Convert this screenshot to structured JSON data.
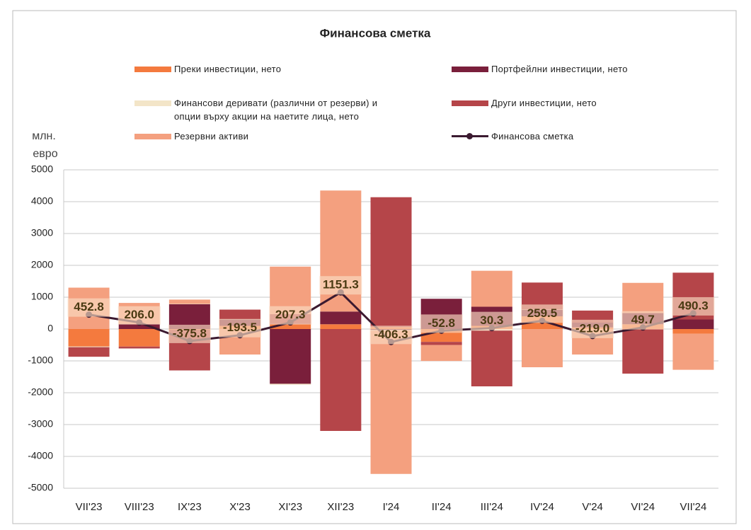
{
  "chart_data": {
    "type": "bar",
    "stacked": true,
    "title": "Финансова сметка",
    "ylabel": [
      "млн.",
      "евро"
    ],
    "categories": [
      "VII'23",
      "VIII'23",
      "IX'23",
      "X'23",
      "XI'23",
      "XII'23",
      "I'24",
      "II'24",
      "III'24",
      "IV'24",
      "V'24",
      "VI'24",
      "VII'24"
    ],
    "series": [
      {
        "name": "Преки инвестиции, нето",
        "color": "#f47a3e",
        "values": [
          -550,
          -550,
          -20,
          100,
          160,
          150,
          60,
          -400,
          100,
          400,
          50,
          150,
          -150
        ]
      },
      {
        "name": "Портфейлни инвестиции, нето",
        "color": "#7a1f3b",
        "values": [
          0,
          160,
          780,
          200,
          -1720,
          400,
          -30,
          950,
          600,
          200,
          150,
          350,
          300
        ]
      },
      {
        "name": "Финансови деривати (различни от резерви) и\nопции върху акции на наетите лица, нето",
        "color": "#f3e5c8",
        "values": [
          -20,
          0,
          10,
          10,
          -30,
          0,
          -20,
          -3,
          -50,
          10,
          0,
          0,
          0
        ]
      },
      {
        "name": "Други инвестиции, нето",
        "color": "#b54549",
        "values": [
          -300,
          -60,
          -1280,
          300,
          310,
          -3200,
          4080,
          -100,
          -1750,
          850,
          380,
          -1400,
          1470
        ]
      },
      {
        "name": "Резервни активи",
        "color": "#f4a07f",
        "values": [
          1300,
          660,
          135,
          -800,
          1490,
          3800,
          -4500,
          -500,
          1130,
          -1200,
          -800,
          950,
          -1130
        ]
      },
      {
        "name": "Финансова сметка",
        "type": "line",
        "color": "#3b1a30",
        "values": [
          452.8,
          206.0,
          -375.8,
          -193.5,
          207.3,
          1151.3,
          -406.3,
          -52.8,
          30.3,
          259.5,
          -219.0,
          49.7,
          490.3
        ],
        "value_labels": [
          "452.8",
          "206.0",
          "-375.8",
          "-193.5",
          "207.3",
          "1151.3",
          "-406.3",
          "-52.8",
          "30.3",
          "259.5",
          "-219.0",
          "49.7",
          "490.3"
        ]
      }
    ],
    "ylim": [
      -5000,
      5000
    ],
    "yticks": [
      -5000,
      -4000,
      -3000,
      -2000,
      -1000,
      0,
      1000,
      2000,
      3000,
      4000,
      5000
    ],
    "grid": true
  }
}
